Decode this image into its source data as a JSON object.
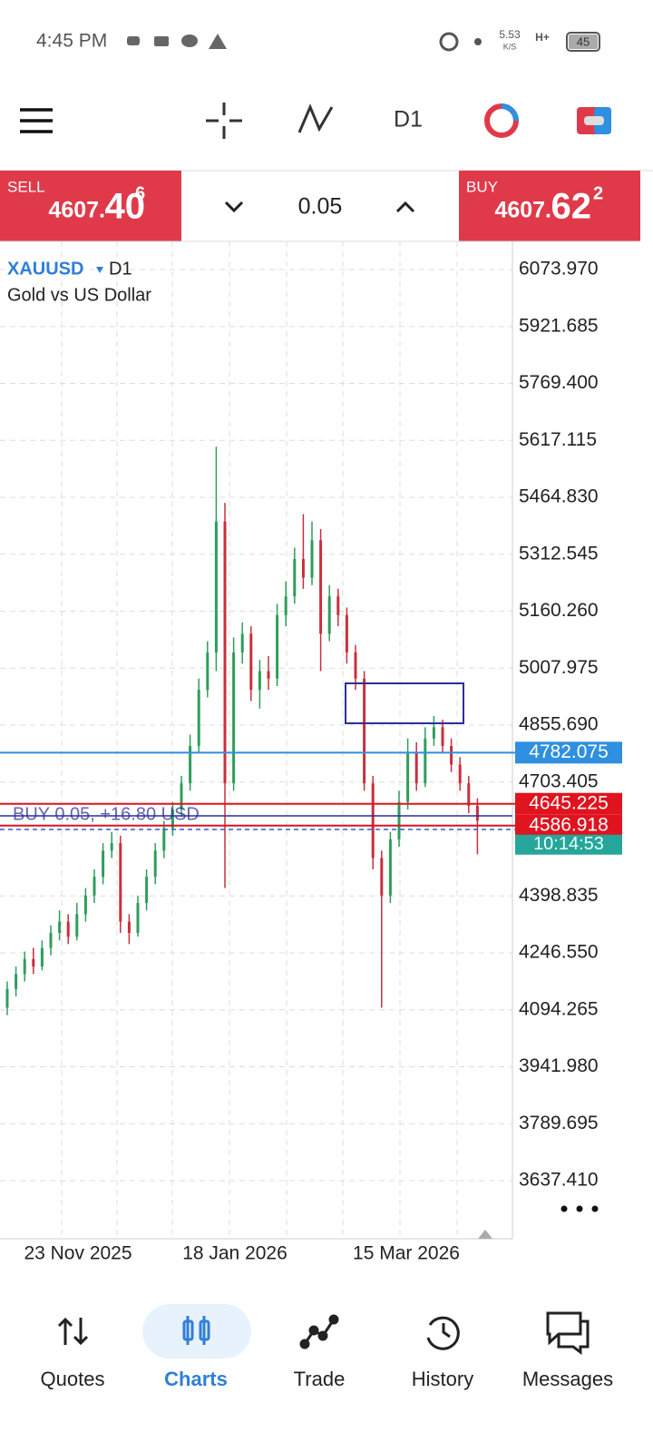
{
  "status_bar": {
    "time": "4:45 PM",
    "net_speed": "5.53",
    "net_unit": "K/S",
    "network": "H+",
    "battery": "45"
  },
  "toolbar": {
    "timeframe": "D1"
  },
  "trade_bar": {
    "sell_label": "SELL",
    "sell_price": "4607.",
    "sell_big": "40",
    "sell_sup": "6",
    "volume": "0.05",
    "buy_label": "BUY",
    "buy_price": "4607.",
    "buy_big": "62",
    "buy_sup": "2"
  },
  "chart": {
    "symbol": "XAUUSD",
    "timeframe": "D1",
    "description": "Gold vs US Dollar",
    "price_ticks": [
      {
        "value": 6073.97,
        "label": "6073.970"
      },
      {
        "value": 5921.685,
        "label": "5921.685"
      },
      {
        "value": 5769.4,
        "label": "5769.400"
      },
      {
        "value": 5617.115,
        "label": "5617.115"
      },
      {
        "value": 5464.83,
        "label": "5464.830"
      },
      {
        "value": 5312.545,
        "label": "5312.545"
      },
      {
        "value": 5160.26,
        "label": "5160.260"
      },
      {
        "value": 5007.975,
        "label": "5007.975"
      },
      {
        "value": 4855.69,
        "label": "4855.690"
      },
      {
        "value": 4703.405,
        "label": "4703.405"
      },
      {
        "value": 4398.835,
        "label": "4398.835"
      },
      {
        "value": 4246.55,
        "label": "4246.550"
      },
      {
        "value": 4094.265,
        "label": "4094.265"
      },
      {
        "value": 3941.98,
        "label": "3941.980"
      },
      {
        "value": 3789.695,
        "label": "3789.695"
      },
      {
        "value": 3637.41,
        "label": "3637.410"
      }
    ],
    "price_lines": [
      {
        "value": 4782.075,
        "label": "4782.075",
        "color": "#2f8fe0"
      },
      {
        "value": 4645.225,
        "label": "4645.225",
        "color": "#e0141e"
      },
      {
        "value": 4586.918,
        "label": "4586.918",
        "color": "#e0141e"
      }
    ],
    "timer": "10:14:53",
    "position_label": "BUY 0.05, +16.80 USD",
    "date_labels": [
      "23 Nov 2025",
      "18 Jan 2026",
      "15 Mar 2026"
    ],
    "candles": [
      [
        4100,
        4170,
        4080,
        4150
      ],
      [
        4150,
        4210,
        4130,
        4190
      ],
      [
        4190,
        4250,
        4170,
        4230
      ],
      [
        4230,
        4260,
        4190,
        4210
      ],
      [
        4210,
        4280,
        4200,
        4260
      ],
      [
        4260,
        4320,
        4240,
        4300
      ],
      [
        4300,
        4360,
        4280,
        4330
      ],
      [
        4330,
        4350,
        4270,
        4290
      ],
      [
        4290,
        4380,
        4280,
        4350
      ],
      [
        4350,
        4420,
        4330,
        4400
      ],
      [
        4400,
        4470,
        4380,
        4450
      ],
      [
        4450,
        4540,
        4430,
        4520
      ],
      [
        4520,
        4570,
        4500,
        4540
      ],
      [
        4540,
        4560,
        4300,
        4330
      ],
      [
        4330,
        4350,
        4270,
        4300
      ],
      [
        4300,
        4400,
        4290,
        4380
      ],
      [
        4380,
        4470,
        4360,
        4450
      ],
      [
        4450,
        4540,
        4430,
        4520
      ],
      [
        4520,
        4600,
        4500,
        4580
      ],
      [
        4580,
        4650,
        4560,
        4630
      ],
      [
        4630,
        4720,
        4610,
        4700
      ],
      [
        4700,
        4830,
        4680,
        4800
      ],
      [
        4800,
        4980,
        4780,
        4950
      ],
      [
        4950,
        5080,
        4930,
        5050
      ],
      [
        5050,
        5600,
        5000,
        5400
      ],
      [
        5400,
        5450,
        4420,
        4700
      ],
      [
        4700,
        5090,
        4680,
        5050
      ],
      [
        5050,
        5130,
        5020,
        5100
      ],
      [
        5100,
        5120,
        4920,
        4950
      ],
      [
        4950,
        5030,
        4900,
        5000
      ],
      [
        5000,
        5040,
        4950,
        4980
      ],
      [
        4980,
        5180,
        4960,
        5150
      ],
      [
        5150,
        5240,
        5120,
        5200
      ],
      [
        5200,
        5330,
        5180,
        5300
      ],
      [
        5300,
        5420,
        5220,
        5250
      ],
      [
        5250,
        5400,
        5230,
        5350
      ],
      [
        5350,
        5380,
        5000,
        5100
      ],
      [
        5100,
        5230,
        5080,
        5200
      ],
      [
        5200,
        5220,
        5120,
        5150
      ],
      [
        5150,
        5170,
        5020,
        5050
      ],
      [
        5050,
        5070,
        4950,
        4980
      ],
      [
        4980,
        5000,
        4680,
        4700
      ],
      [
        4700,
        4720,
        4470,
        4500
      ],
      [
        4500,
        4520,
        4100,
        4400
      ],
      [
        4400,
        4570,
        4380,
        4550
      ],
      [
        4550,
        4680,
        4530,
        4650
      ],
      [
        4650,
        4820,
        4630,
        4780
      ],
      [
        4780,
        4810,
        4680,
        4700
      ],
      [
        4700,
        4850,
        4690,
        4820
      ],
      [
        4820,
        4880,
        4800,
        4850
      ],
      [
        4850,
        4870,
        4780,
        4800
      ],
      [
        4800,
        4820,
        4730,
        4750
      ],
      [
        4750,
        4770,
        4680,
        4700
      ],
      [
        4700,
        4720,
        4620,
        4640
      ],
      [
        4640,
        4660,
        4510,
        4600
      ]
    ]
  },
  "nav": {
    "items": [
      "Quotes",
      "Charts",
      "Trade",
      "History",
      "Messages"
    ]
  }
}
